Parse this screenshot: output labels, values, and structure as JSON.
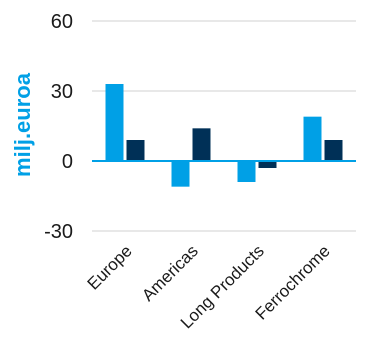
{
  "chart_data": {
    "type": "bar",
    "title": "",
    "xlabel": "",
    "ylabel": "milj.euroa",
    "ylim": [
      -30,
      60
    ],
    "yticks": [
      60,
      30,
      0,
      -30
    ],
    "grid": true,
    "legend": "none",
    "categories": [
      "Europe",
      "Americas",
      "Long Products",
      "Ferrochrome"
    ],
    "series": [
      {
        "values": [
          33,
          -11,
          -9,
          19
        ],
        "color": "#00a0e6"
      },
      {
        "values": [
          9,
          14,
          -3,
          9
        ],
        "color": "#003057"
      }
    ],
    "colors": {
      "axis_title": "#00a0e6",
      "zero_line": "#00a0e6",
      "grid": "#d9d9d9"
    }
  }
}
